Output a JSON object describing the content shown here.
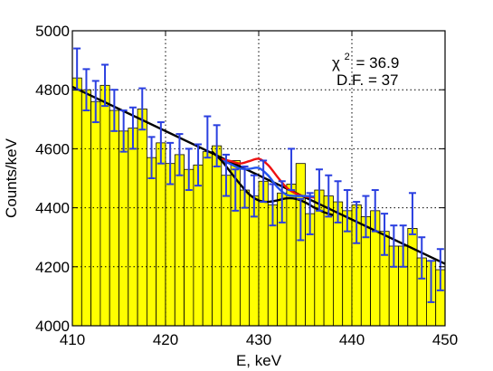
{
  "chart_data": {
    "type": "bar",
    "xlabel": "E, keV",
    "ylabel": "Counts/keV",
    "xlim": [
      410,
      450
    ],
    "ylim": [
      4000,
      5000
    ],
    "xticks": [
      "410",
      "420",
      "430",
      "440",
      "450"
    ],
    "yticks": [
      "4000",
      "4200",
      "4400",
      "4600",
      "4800",
      "5000"
    ],
    "grid": true,
    "bar_width": 1,
    "bars": {
      "x": [
        410.5,
        411.5,
        412.5,
        413.5,
        414.5,
        415.5,
        416.5,
        417.5,
        418.5,
        419.5,
        420.5,
        421.5,
        422.5,
        423.5,
        424.5,
        425.5,
        426.5,
        427.5,
        428.5,
        429.5,
        430.5,
        431.5,
        432.5,
        433.5,
        434.5,
        435.5,
        436.5,
        437.5,
        438.5,
        439.5,
        440.5,
        441.5,
        442.5,
        443.5,
        444.5,
        445.5,
        446.5,
        447.5,
        448.5,
        449.5
      ],
      "values": [
        4840,
        4800,
        4760,
        4815,
        4730,
        4660,
        4670,
        4735,
        4570,
        4620,
        4550,
        4580,
        4530,
        4545,
        4590,
        4610,
        4510,
        4560,
        4460,
        4440,
        4490,
        4410,
        4450,
        4480,
        4550,
        4380,
        4460,
        4440,
        4420,
        4390,
        4410,
        4370,
        4390,
        4320,
        4270,
        4270,
        4330,
        4230,
        4220,
        4190
      ],
      "color": "#ffff00",
      "edge_color": "#000000"
    },
    "error_bars": {
      "x": [
        410.5,
        411.5,
        412.5,
        413.5,
        414.5,
        415.5,
        416.5,
        417.5,
        418.5,
        419.5,
        420.5,
        421.5,
        422.5,
        423.5,
        424.5,
        425.5,
        426.5,
        427.5,
        428.5,
        429.5,
        430.5,
        431.5,
        432.5,
        433.5,
        434.5,
        435.5,
        436.5,
        437.5,
        438.5,
        439.5,
        440.5,
        441.5,
        442.5,
        443.5,
        444.5,
        445.5,
        446.5,
        447.5,
        448.5,
        449.5
      ],
      "y": [
        4870,
        4800,
        4760,
        4815,
        4730,
        4660,
        4670,
        4735,
        4570,
        4620,
        4550,
        4580,
        4530,
        4545,
        4640,
        4610,
        4510,
        4460,
        4470,
        4440,
        4490,
        4410,
        4420,
        4530,
        4360,
        4380,
        4460,
        4440,
        4420,
        4390,
        4350,
        4370,
        4390,
        4310,
        4270,
        4270,
        4380,
        4230,
        4150,
        4190
      ],
      "err": [
        70,
        70,
        70,
        70,
        70,
        70,
        70,
        70,
        70,
        70,
        70,
        70,
        70,
        70,
        70,
        70,
        70,
        70,
        70,
        70,
        70,
        70,
        70,
        70,
        70,
        70,
        70,
        70,
        70,
        70,
        70,
        70,
        70,
        70,
        70,
        70,
        70,
        70,
        70,
        70
      ],
      "color": "#2a3fe0"
    },
    "series": [
      {
        "color": "#000000",
        "type": "line",
        "x": [
          410,
          450
        ],
        "y": [
          4810,
          4210
        ]
      },
      {
        "color": "#ee1111",
        "type": "line",
        "x": [
          426,
          427,
          428,
          429,
          430,
          431,
          432,
          433,
          434,
          435,
          436
        ],
        "y": [
          4565,
          4558,
          4550,
          4558,
          4566,
          4545,
          4505,
          4468,
          4448,
          4438,
          4435
        ]
      },
      {
        "color": "#2255ee",
        "type": "line",
        "x": [
          426,
          427,
          428,
          429,
          430,
          431,
          432,
          433,
          434,
          435,
          436
        ],
        "y": [
          4560,
          4548,
          4533,
          4532,
          4535,
          4510,
          4470,
          4444,
          4440,
          4440,
          4438
        ]
      },
      {
        "color": "#000000",
        "type": "line",
        "x": [
          425,
          426,
          427,
          428,
          429,
          430,
          431,
          432,
          433,
          434,
          435,
          436,
          437,
          438
        ],
        "y": [
          4590,
          4560,
          4520,
          4480,
          4445,
          4425,
          4420,
          4425,
          4432,
          4430,
          4418,
          4400,
          4385,
          4375
        ]
      }
    ],
    "annotations": {
      "chi_label": "χ",
      "chi_exp": "2",
      "chi_value": "= 36.9",
      "df": "D.F. = 37"
    }
  }
}
